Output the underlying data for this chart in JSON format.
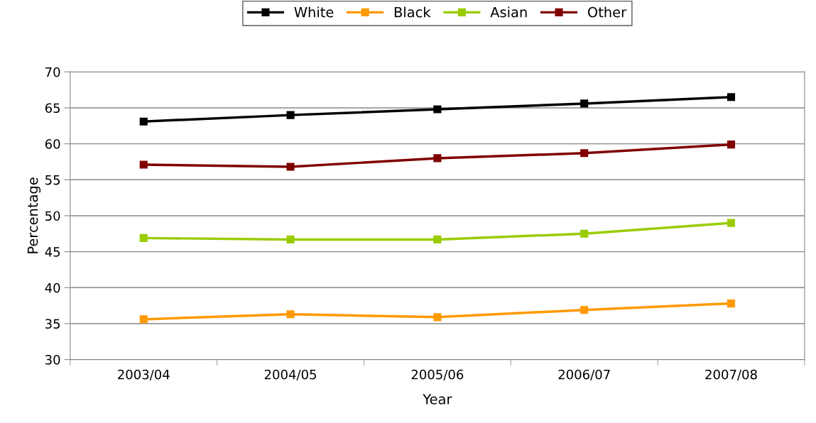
{
  "chart_data": {
    "type": "line",
    "xlabel": "Year",
    "ylabel": "Percentage",
    "categories": [
      "2003/04",
      "2004/05",
      "2005/06",
      "2006/07",
      "2007/08"
    ],
    "series": [
      {
        "name": "White",
        "color": "#000000",
        "values": [
          63.1,
          64.0,
          64.8,
          65.6,
          66.5
        ]
      },
      {
        "name": "Black",
        "color": "#ff9900",
        "values": [
          35.6,
          36.3,
          35.9,
          36.9,
          37.8
        ]
      },
      {
        "name": "Asian",
        "color": "#99cc00",
        "values": [
          46.9,
          46.7,
          46.7,
          47.5,
          49.0
        ]
      },
      {
        "name": "Other",
        "color": "#800000",
        "values": [
          57.1,
          56.8,
          58.0,
          58.7,
          59.9
        ]
      }
    ],
    "ylim": [
      30,
      70
    ],
    "yticks": [
      30,
      35,
      40,
      45,
      50,
      55,
      60,
      65,
      70
    ],
    "grid": "y",
    "legend": "top",
    "marker": "square",
    "line_style": "solid"
  }
}
